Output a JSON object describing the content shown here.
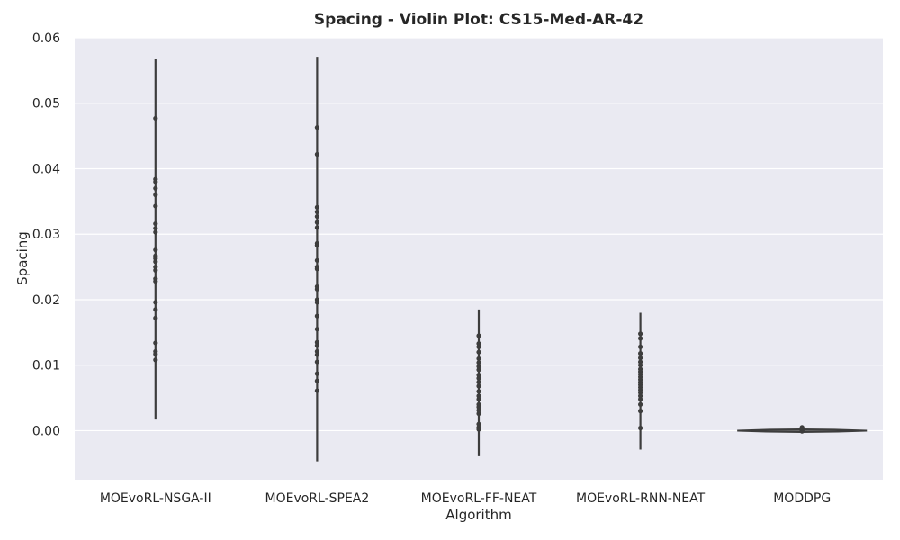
{
  "chart_data": {
    "type": "violin",
    "title": "Spacing - Violin Plot: CS15-Med-AR-42",
    "xlabel": "Algorithm",
    "ylabel": "Spacing",
    "ylim": [
      -0.0075,
      0.06
    ],
    "yticks": [
      0.0,
      0.01,
      0.02,
      0.03,
      0.04,
      0.05,
      0.06
    ],
    "ytick_labels": [
      "0.00",
      "0.01",
      "0.02",
      "0.03",
      "0.04",
      "0.05",
      "0.06"
    ],
    "grid": true,
    "categories": [
      "MOEvoRL-NSGA-II",
      "MOEvoRL-SPEA2",
      "MOEvoRL-FF-NEAT",
      "MOEvoRL-RNN-NEAT",
      "MODDPG"
    ],
    "violin_range": [
      [
        0.0017,
        0.0567
      ],
      [
        -0.0047,
        0.0571
      ],
      [
        -0.0039,
        0.0185
      ],
      [
        -0.0029,
        0.018
      ],
      [
        -0.0001,
        0.0006
      ]
    ],
    "points": [
      [
        0.0477,
        0.0384,
        0.038,
        0.037,
        0.036,
        0.0343,
        0.0316,
        0.0309,
        0.0303,
        0.0276,
        0.0267,
        0.0263,
        0.0258,
        0.025,
        0.0245,
        0.0232,
        0.0228,
        0.0196,
        0.0185,
        0.0172,
        0.0134,
        0.0121,
        0.0117,
        0.0108
      ],
      [
        0.0463,
        0.0422,
        0.0341,
        0.0334,
        0.0327,
        0.0318,
        0.031,
        0.0286,
        0.0283,
        0.026,
        0.025,
        0.0247,
        0.022,
        0.0216,
        0.02,
        0.0196,
        0.0175,
        0.0155,
        0.0135,
        0.013,
        0.0121,
        0.0116,
        0.0105,
        0.0087,
        0.0076,
        0.0061
      ],
      [
        0.0145,
        0.0133,
        0.0128,
        0.012,
        0.011,
        0.0104,
        0.0098,
        0.0093,
        0.0085,
        0.008,
        0.0074,
        0.0068,
        0.006,
        0.0053,
        0.0048,
        0.004,
        0.0036,
        0.0031,
        0.0026,
        0.001,
        0.0005,
        0.0002
      ],
      [
        0.0148,
        0.0141,
        0.0128,
        0.0118,
        0.0111,
        0.0105,
        0.01,
        0.0094,
        0.009,
        0.0086,
        0.0082,
        0.0078,
        0.0074,
        0.007,
        0.0066,
        0.0062,
        0.0058,
        0.0053,
        0.0048,
        0.004,
        0.003,
        0.0004
      ],
      [
        0.0005,
        0.0004,
        0.0003,
        0.0002,
        0.0001,
        0.0,
        -0.0001
      ]
    ],
    "colors": {
      "background": "#eaeaf2",
      "grid": "#ffffff",
      "mark": "#3d3d3d"
    }
  }
}
